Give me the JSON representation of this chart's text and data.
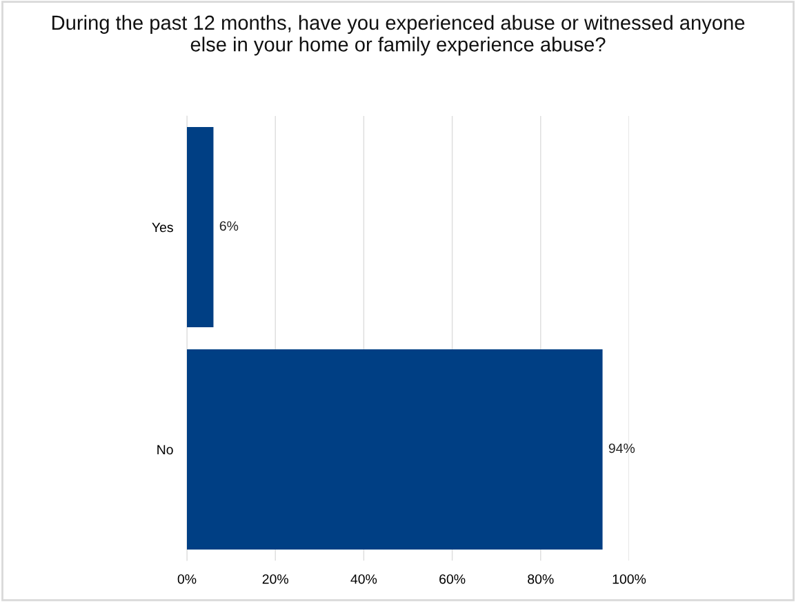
{
  "chart_data": {
    "type": "bar",
    "orientation": "horizontal",
    "title": "During the past 12 months, have you experienced abuse or witnessed anyone\nelse in your home or family experience abuse?",
    "categories": [
      "Yes",
      "No"
    ],
    "values": [
      6,
      94
    ],
    "value_labels": [
      "6%",
      "94%"
    ],
    "color": "#003f84",
    "xlim": [
      0,
      100
    ],
    "xticks": [
      {
        "value": 0,
        "label": "0%"
      },
      {
        "value": 20,
        "label": "20%"
      },
      {
        "value": 40,
        "label": "40%"
      },
      {
        "value": 60,
        "label": "60%"
      },
      {
        "value": 80,
        "label": "80%"
      },
      {
        "value": 100,
        "label": "100%"
      }
    ],
    "grid": "x",
    "legend": false
  }
}
